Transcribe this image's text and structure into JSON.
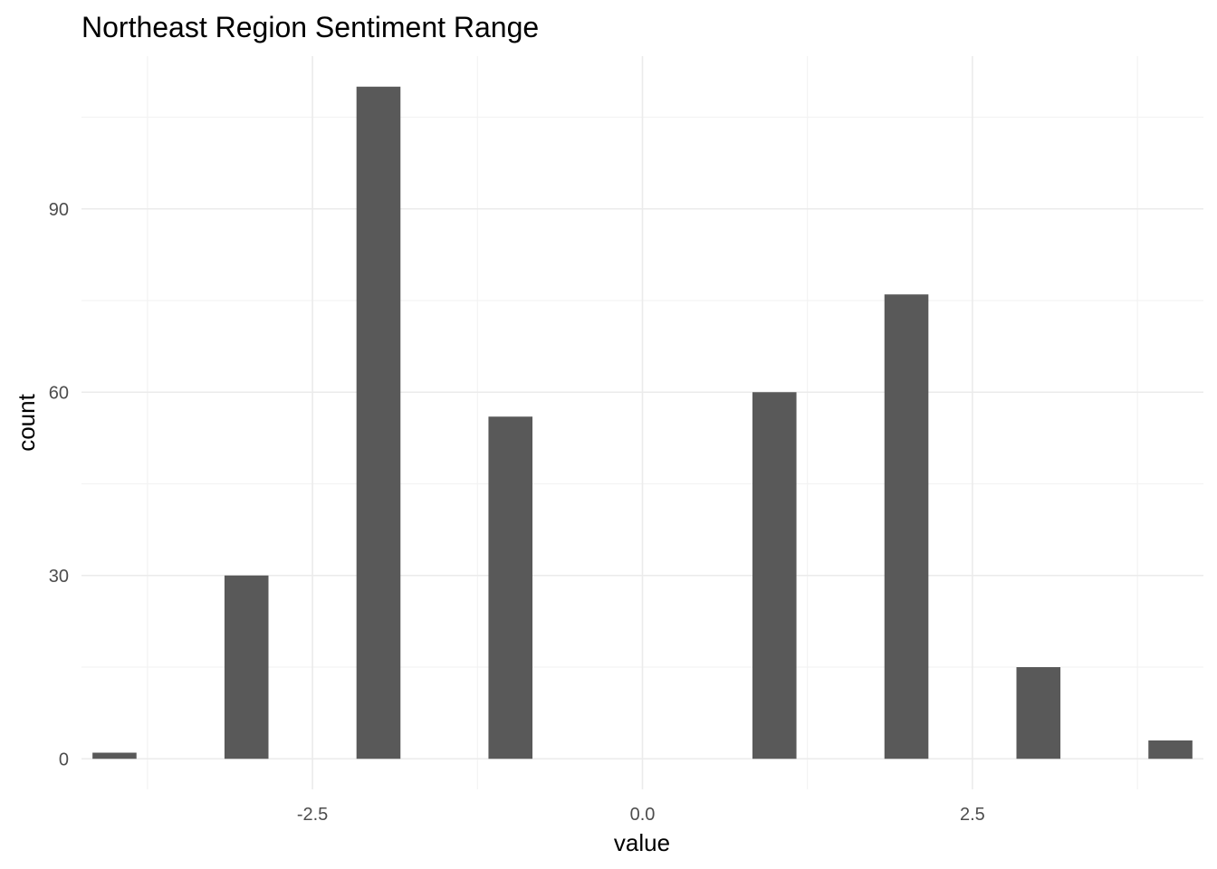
{
  "chart_data": {
    "type": "bar",
    "title": "Northeast Region Sentiment Range",
    "xlabel": "value",
    "ylabel": "count",
    "x": [
      -4,
      -3,
      -2,
      -1,
      1,
      2,
      3,
      4
    ],
    "values": [
      1,
      30,
      110,
      56,
      60,
      76,
      15,
      3
    ],
    "bin_width": 0.3333,
    "xlim": [
      -4.25,
      4.25
    ],
    "ylim": [
      -5,
      115
    ],
    "x_ticks": [
      -2.5,
      0.0,
      2.5
    ],
    "x_tick_labels": [
      "-2.5",
      "0.0",
      "2.5"
    ],
    "y_ticks": [
      0,
      30,
      60,
      90
    ],
    "y_tick_labels": [
      "0",
      "30",
      "60",
      "90"
    ],
    "grid": true,
    "bar_color": "#595959"
  }
}
